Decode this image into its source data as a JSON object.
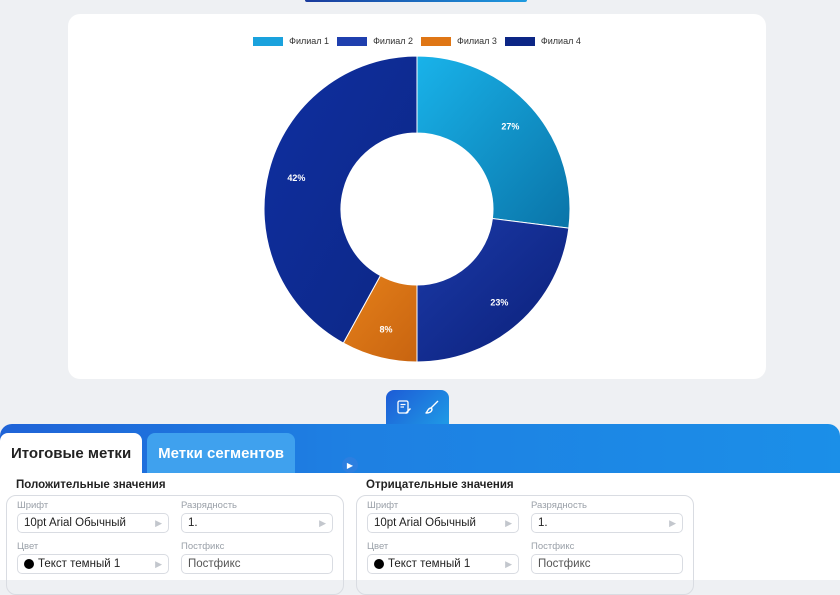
{
  "legend": [
    {
      "label": "Филиал 1",
      "color": "#1aa2dd"
    },
    {
      "label": "Филиал 2",
      "color": "#1f3fae"
    },
    {
      "label": "Филиал 3",
      "color": "#df7615"
    },
    {
      "label": "Филиал 4",
      "color": "#0c2685"
    }
  ],
  "chart_data": {
    "type": "pie",
    "donut": true,
    "categories": [
      "Филиал 1",
      "Филиал 2",
      "Филиал 3",
      "Филиал 4"
    ],
    "values": [
      27,
      23,
      8,
      42
    ],
    "labels": [
      "27%",
      "23%",
      "8%",
      "42%"
    ],
    "colors": [
      "#1aa2dd",
      "#0d2d94",
      "#df7615",
      "#0f2c96"
    ],
    "legend_position": "top"
  },
  "toolbar": {
    "edit_icon": "edit-chart-icon",
    "style_icon": "brush-icon"
  },
  "tabs": [
    {
      "label": "Итоговые метки",
      "active": true
    },
    {
      "label": "Метки сегментов",
      "active": false
    }
  ],
  "positive": {
    "title": "Положительные значения",
    "font_label": "Шрифт",
    "font_value": "10pt Arial Обычный",
    "digits_label": "Разрядность",
    "digits_value": "1.",
    "color_label": "Цвет",
    "color_value": "Текст темный 1",
    "postfix_label": "Постфикс",
    "postfix_placeholder": "Постфикс"
  },
  "negative": {
    "title": "Отрицательные значения",
    "font_label": "Шрифт",
    "font_value": "10pt Arial Обычный",
    "digits_label": "Разрядность",
    "digits_value": "1.",
    "color_label": "Цвет",
    "color_value": "Текст темный 1",
    "postfix_label": "Постфикс",
    "postfix_placeholder": "Постфикс"
  }
}
